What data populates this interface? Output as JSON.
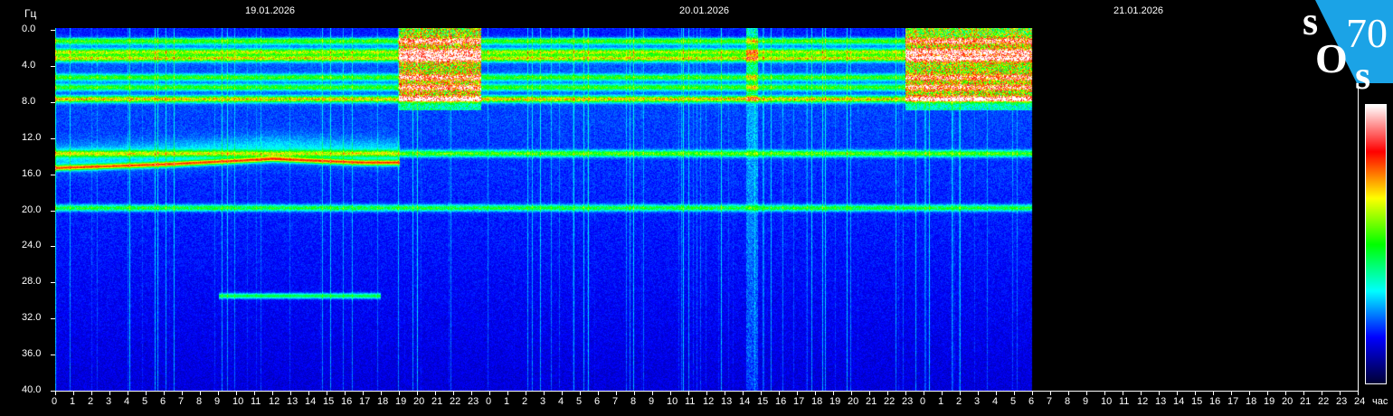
{
  "chart_data": {
    "type": "heatmap",
    "title": "",
    "ylabel": "Гц",
    "xlabel": "час",
    "ylim": [
      0,
      40
    ],
    "y_ticks": [
      "0.0",
      "4.0",
      "8.0",
      "12.0",
      "16.0",
      "20.0",
      "24.0",
      "28.0",
      "32.0",
      "36.0",
      "40.0"
    ],
    "x_ticks": [
      "0",
      "1",
      "2",
      "3",
      "4",
      "5",
      "6",
      "7",
      "8",
      "9",
      "10",
      "11",
      "12",
      "13",
      "14",
      "15",
      "16",
      "17",
      "18",
      "19",
      "20",
      "21",
      "22",
      "23",
      "0",
      "1",
      "2",
      "3",
      "4",
      "5",
      "6",
      "7",
      "8",
      "9",
      "10",
      "11",
      "12",
      "13",
      "14",
      "15",
      "16",
      "17",
      "18",
      "19",
      "20",
      "21",
      "22",
      "23",
      "0",
      "1",
      "2",
      "3",
      "4",
      "5",
      "6",
      "7",
      "8",
      "9",
      "10",
      "11",
      "12",
      "13",
      "14",
      "15",
      "16",
      "17",
      "18",
      "19",
      "20",
      "21",
      "22",
      "23",
      "24"
    ],
    "dates": [
      "19.01.2026",
      "20.01.2026",
      "21.01.2026"
    ],
    "xlim_hours": [
      0,
      72
    ],
    "data_end_hours": 54,
    "grid": false,
    "colorbar": {
      "position": "right",
      "colors": [
        "#000033",
        "#0000ff",
        "#00ffff",
        "#00ff00",
        "#ffff00",
        "#ff0000",
        "#ffffff"
      ]
    },
    "bands_hz": [
      {
        "freq": 1.4,
        "strength": 0.35
      },
      {
        "freq": 2.6,
        "strength": 0.45
      },
      {
        "freq": 3.3,
        "strength": 0.5
      },
      {
        "freq": 5.4,
        "strength": 0.35
      },
      {
        "freq": 6.5,
        "strength": 0.35
      },
      {
        "freq": 7.8,
        "strength": 0.55
      },
      {
        "freq": 13.8,
        "strength": 0.4
      },
      {
        "freq": 19.8,
        "strength": 0.35
      }
    ],
    "trend_line": {
      "hours": [
        0,
        6,
        12,
        17,
        19
      ],
      "freq": [
        15.4,
        15.0,
        14.4,
        14.8,
        14.8
      ]
    },
    "bursts": [
      {
        "hours": [
          19,
          23.5
        ],
        "freq": [
          0,
          9
        ],
        "strength": 0.6
      },
      {
        "hours": [
          47,
          54
        ],
        "freq": [
          0,
          9
        ],
        "strength": 0.55
      },
      {
        "hours": [
          38.2,
          38.8
        ],
        "freq": [
          0,
          40
        ],
        "strength": 0.25
      }
    ]
  },
  "logo": {
    "text": "SOS 70"
  }
}
